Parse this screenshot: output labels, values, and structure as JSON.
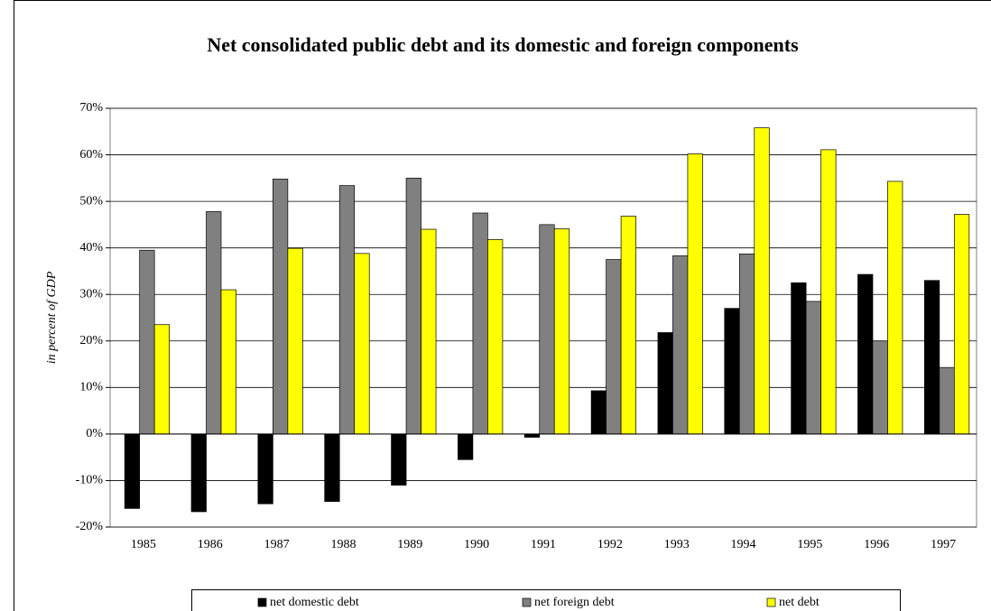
{
  "chart_data": {
    "type": "bar",
    "title": "Net consolidated public debt and its domestic and foreign components",
    "y_label": "in percent of GDP",
    "categories": [
      "1985",
      "1986",
      "1987",
      "1988",
      "1989",
      "1990",
      "1991",
      "1992",
      "1993",
      "1994",
      "1995",
      "1996",
      "1997"
    ],
    "series": [
      {
        "name": "net domestic debt",
        "color": "#000000",
        "values": [
          -16,
          -16.7,
          -15,
          -14.5,
          -11,
          -5.5,
          -0.7,
          9.3,
          21.8,
          27,
          32.5,
          34.3,
          33
        ]
      },
      {
        "name": "net foreign debt",
        "color": "#808080",
        "values": [
          39.5,
          47.8,
          54.8,
          53.4,
          55,
          47.5,
          45,
          37.5,
          38.3,
          38.7,
          28.5,
          20,
          14.3
        ]
      },
      {
        "name": "net debt",
        "color": "#ffff00",
        "values": [
          23.5,
          31,
          39.9,
          38.8,
          44,
          41.8,
          44.1,
          46.8,
          60.2,
          65.8,
          61.1,
          54.3,
          47.2
        ]
      }
    ],
    "ylim": [
      -20,
      70
    ],
    "yticks": [
      {
        "value": -20,
        "label": "-20%"
      },
      {
        "value": -10,
        "label": "-10%"
      },
      {
        "value": 0,
        "label": "0%"
      },
      {
        "value": 10,
        "label": "10%"
      },
      {
        "value": 20,
        "label": "20%"
      },
      {
        "value": 30,
        "label": "30%"
      },
      {
        "value": 40,
        "label": "40%"
      },
      {
        "value": 50,
        "label": "50%"
      },
      {
        "value": 60,
        "label": "60%"
      },
      {
        "value": 70,
        "label": "70%"
      }
    ],
    "grid": true,
    "legend": "bottom"
  }
}
